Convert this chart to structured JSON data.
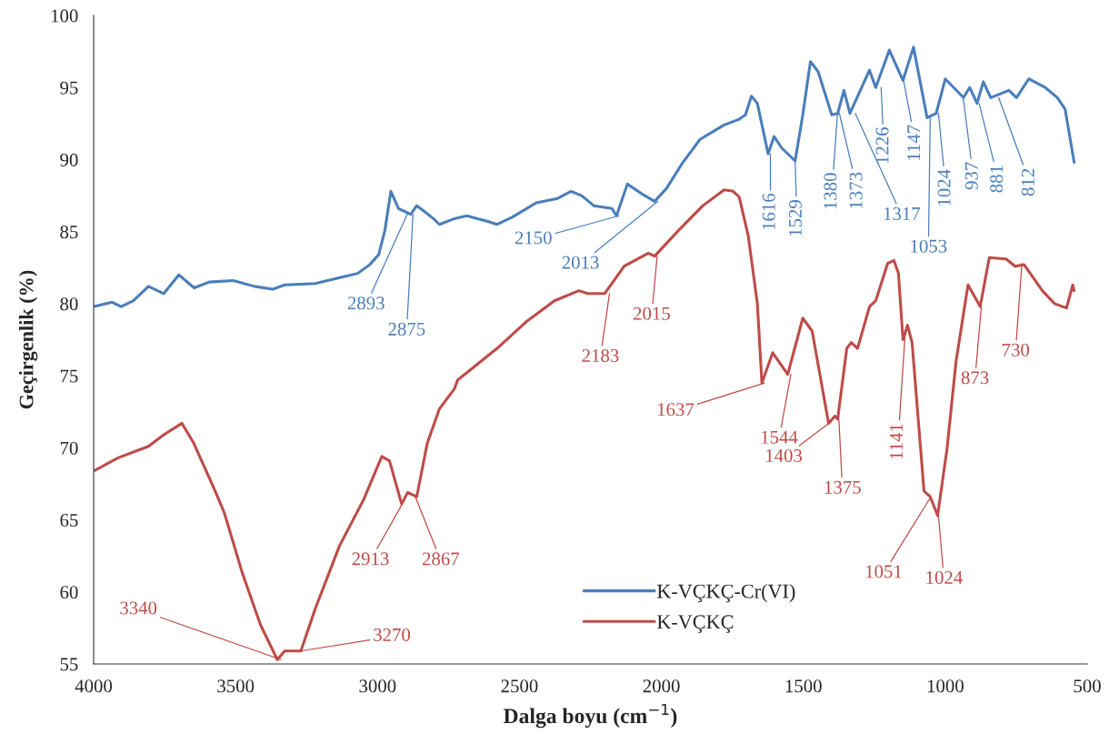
{
  "chart_data": {
    "type": "line",
    "xlabel": "Dalga boyu (cm$^{−1}$)",
    "ylabel": "Geçirgenlik (%)",
    "xlim": [
      4000,
      500
    ],
    "xticks": [
      4000,
      3500,
      3000,
      2500,
      2000,
      1500,
      1000,
      500
    ],
    "ylim": [
      55,
      100
    ],
    "yticks": [
      55,
      60,
      65,
      70,
      75,
      80,
      85,
      90,
      95,
      100
    ],
    "grid": false,
    "legend": "bottom",
    "line_style": "solid",
    "marker": "none",
    "series": [
      {
        "name": "K-VÇKÇ-Cr(VI)",
        "color": "#4a7ebb",
        "x": [
          3999,
          3935,
          3903,
          3860,
          3807,
          3753,
          3700,
          3646,
          3593,
          3508,
          3433,
          3369,
          3327,
          3220,
          3113,
          3070,
          3028,
          2996,
          2974,
          2953,
          2926,
          2905,
          2883,
          2862,
          2835,
          2803,
          2782,
          2729,
          2686,
          2611,
          2579,
          2526,
          2441,
          2366,
          2318,
          2281,
          2238,
          2174,
          2158,
          2120,
          2067,
          2024,
          1982,
          1928,
          1864,
          1779,
          1726,
          1704,
          1683,
          1662,
          1624,
          1603,
          1576,
          1529,
          1502,
          1475,
          1448,
          1400,
          1379,
          1357,
          1336,
          1267,
          1245,
          1197,
          1149,
          1112,
          1064,
          1032,
          1000,
          936,
          914,
          888,
          866,
          840,
          776,
          749,
          706,
          648,
          605,
          578,
          546
        ],
        "values": [
          79.8,
          80.1,
          79.8,
          80.2,
          81.2,
          80.7,
          82.0,
          81.1,
          81.5,
          81.6,
          81.2,
          81.0,
          81.3,
          81.4,
          81.9,
          82.1,
          82.7,
          83.4,
          85.1,
          87.8,
          86.6,
          86.4,
          86.2,
          86.8,
          86.4,
          85.9,
          85.5,
          85.9,
          86.1,
          85.7,
          85.5,
          86.0,
          87.0,
          87.3,
          87.8,
          87.5,
          86.8,
          86.6,
          86.1,
          88.3,
          87.6,
          87.1,
          88.0,
          89.7,
          91.4,
          92.4,
          92.8,
          93.1,
          94.4,
          93.9,
          90.4,
          91.6,
          90.8,
          89.9,
          93.1,
          96.8,
          96.1,
          93.1,
          93.2,
          94.8,
          93.2,
          96.2,
          95.0,
          97.6,
          95.5,
          97.8,
          92.9,
          93.2,
          95.6,
          94.3,
          95.0,
          93.9,
          95.4,
          94.3,
          94.8,
          94.3,
          95.6,
          95.0,
          94.3,
          93.5,
          89.8
        ]
      },
      {
        "name": "K-VÇKÇ",
        "color": "#be4b48",
        "x": [
          3999,
          3914,
          3807,
          3753,
          3689,
          3647,
          3572,
          3540,
          3476,
          3412,
          3353,
          3327,
          3270,
          3220,
          3134,
          3049,
          2985,
          2958,
          2915,
          2894,
          2862,
          2825,
          2782,
          2729,
          2718,
          2579,
          2473,
          2377,
          2291,
          2259,
          2200,
          2131,
          2046,
          2024,
          1939,
          1854,
          1779,
          1747,
          1726,
          1694,
          1662,
          1646,
          1608,
          1555,
          1502,
          1469,
          1411,
          1389,
          1379,
          1347,
          1331,
          1309,
          1267,
          1245,
          1203,
          1181,
          1165,
          1149,
          1133,
          1117,
          1075,
          1053,
          1027,
          994,
          962,
          920,
          877,
          845,
          786,
          754,
          722,
          658,
          615,
          573,
          551,
          546
        ],
        "values": [
          68.4,
          69.3,
          70.1,
          70.9,
          71.7,
          70.3,
          67.0,
          65.5,
          61.3,
          57.7,
          55.3,
          55.9,
          55.9,
          58.8,
          63.2,
          66.4,
          69.4,
          69.1,
          66.1,
          66.9,
          66.6,
          70.3,
          72.7,
          74.1,
          74.7,
          76.9,
          78.8,
          80.2,
          80.9,
          80.7,
          80.7,
          82.6,
          83.5,
          83.3,
          85.1,
          86.8,
          87.9,
          87.8,
          87.4,
          84.7,
          80.0,
          74.5,
          76.6,
          75.1,
          79.0,
          78.1,
          71.7,
          72.2,
          72.0,
          76.9,
          77.3,
          76.9,
          79.8,
          80.2,
          82.8,
          83.0,
          82.1,
          77.5,
          78.5,
          77.3,
          67.0,
          66.6,
          65.3,
          69.9,
          76.0,
          81.3,
          79.8,
          83.2,
          83.1,
          82.6,
          82.7,
          80.9,
          80.0,
          79.7,
          81.3,
          80.9
        ]
      }
    ],
    "annotations": [
      {
        "text": "2893",
        "x": 2893,
        "y": 86.3
      },
      {
        "text": "2875",
        "x": 2875,
        "y": 86.2
      },
      {
        "text": "2150",
        "x": 2150,
        "y": 86.1
      },
      {
        "text": "2013",
        "x": 2013,
        "y": 87.1
      },
      {
        "text": "1616",
        "x": 1616,
        "y": 90.4
      },
      {
        "text": "1529",
        "x": 1529,
        "y": 89.9
      },
      {
        "text": "1380",
        "x": 1380,
        "y": 93.1
      },
      {
        "text": "1373",
        "x": 1373,
        "y": 93.2
      },
      {
        "text": "1317",
        "x": 1317,
        "y": 93.2
      },
      {
        "text": "1226",
        "x": 1226,
        "y": 95.0
      },
      {
        "text": "1147",
        "x": 1147,
        "y": 95.5
      },
      {
        "text": "1053",
        "x": 1053,
        "y": 92.9
      },
      {
        "text": "1024",
        "x": 1024,
        "y": 93.2
      },
      {
        "text": "937",
        "x": 937,
        "y": 94.3
      },
      {
        "text": "881",
        "x": 881,
        "y": 93.9
      },
      {
        "text": "812",
        "x": 812,
        "y": 94.3
      },
      {
        "text": "3340",
        "x": 3340,
        "y": 55.3
      },
      {
        "text": "3270",
        "x": 3270,
        "y": 55.9
      },
      {
        "text": "2913",
        "x": 2913,
        "y": 66.1
      },
      {
        "text": "2867",
        "x": 2867,
        "y": 66.6
      },
      {
        "text": "2183",
        "x": 2183,
        "y": 80.7
      },
      {
        "text": "2015",
        "x": 2015,
        "y": 83.3
      },
      {
        "text": "1637",
        "x": 1637,
        "y": 74.5
      },
      {
        "text": "1544",
        "x": 1544,
        "y": 75.1
      },
      {
        "text": "1403",
        "x": 1403,
        "y": 71.8
      },
      {
        "text": "1375",
        "x": 1375,
        "y": 72.0
      },
      {
        "text": "1141",
        "x": 1141,
        "y": 78.0
      },
      {
        "text": "1051",
        "x": 1051,
        "y": 66.6
      },
      {
        "text": "1024",
        "x": 1024,
        "y": 65.3
      },
      {
        "text": "873",
        "x": 873,
        "y": 79.8
      },
      {
        "text": "730",
        "x": 730,
        "y": 82.8
      }
    ]
  }
}
